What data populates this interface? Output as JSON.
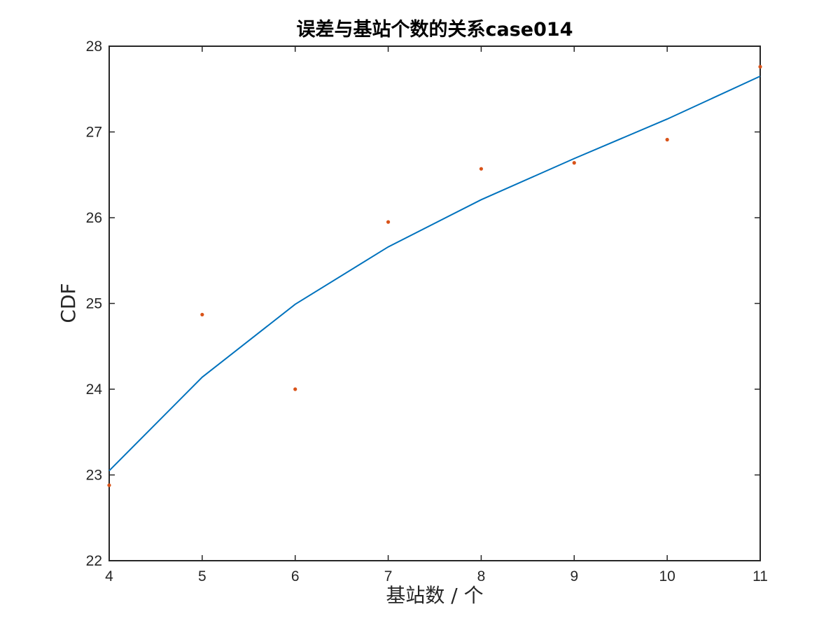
{
  "chart_data": {
    "type": "line",
    "title": "误差与基站个数的关系case014",
    "xlabel": "基站数 / 个",
    "ylabel": "CDF",
    "xlim": [
      4,
      11
    ],
    "ylim": [
      22,
      28
    ],
    "xticks": [
      4,
      5,
      6,
      7,
      8,
      9,
      10,
      11
    ],
    "yticks": [
      22,
      23,
      24,
      25,
      26,
      27,
      28
    ],
    "grid": false,
    "box": true,
    "series": [
      {
        "kind": "line",
        "color": "#0072BD",
        "x": [
          4,
          5,
          6,
          7,
          8,
          9,
          10,
          11
        ],
        "y": [
          23.05,
          24.14,
          24.99,
          25.66,
          26.21,
          26.69,
          27.15,
          27.65
        ]
      },
      {
        "kind": "scatter",
        "color": "#D95319",
        "x": [
          4,
          5,
          6,
          7,
          8,
          9,
          10,
          11
        ],
        "y": [
          22.88,
          24.87,
          24.0,
          25.95,
          26.57,
          26.64,
          26.91,
          27.76
        ]
      }
    ]
  }
}
